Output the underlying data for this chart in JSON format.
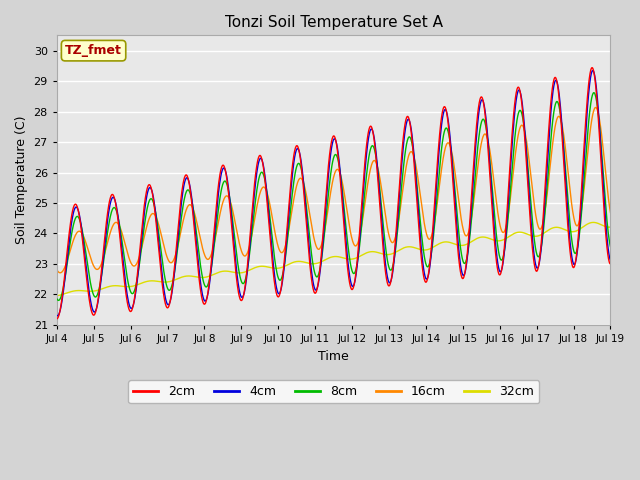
{
  "title": "Tonzi Soil Temperature Set A",
  "xlabel": "Time",
  "ylabel": "Soil Temperature (C)",
  "ylim": [
    21.0,
    30.5
  ],
  "yticks": [
    21.0,
    22.0,
    23.0,
    24.0,
    25.0,
    26.0,
    27.0,
    28.0,
    29.0,
    30.0
  ],
  "xlim": [
    4,
    19
  ],
  "colors": {
    "2cm": "#ff0000",
    "4cm": "#0000dd",
    "8cm": "#00bb00",
    "16cm": "#ff8800",
    "32cm": "#dddd00"
  },
  "legend_labels": [
    "2cm",
    "4cm",
    "8cm",
    "16cm",
    "32cm"
  ],
  "annotation_text": "TZ_fmet",
  "annotation_color": "#aa0000",
  "annotation_bg": "#ffffcc",
  "fig_bg": "#d4d4d4",
  "plot_bg": "#e8e8e8",
  "n_days": 15,
  "start_day": 4,
  "points_per_day": 96
}
